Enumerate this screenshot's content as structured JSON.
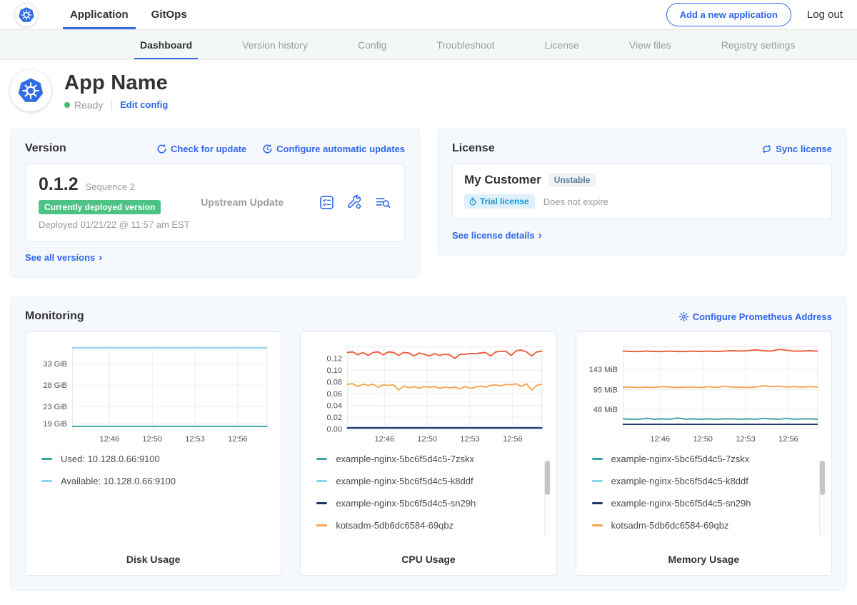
{
  "topbar": {
    "nav": [
      {
        "label": "Application"
      },
      {
        "label": "GitOps"
      }
    ],
    "add_app_button": "Add a new application",
    "logout": "Log out"
  },
  "subnav": {
    "tabs": [
      {
        "label": "Dashboard"
      },
      {
        "label": "Version history"
      },
      {
        "label": "Config"
      },
      {
        "label": "Troubleshoot"
      },
      {
        "label": "License"
      },
      {
        "label": "View files"
      },
      {
        "label": "Registry settings"
      }
    ]
  },
  "app_header": {
    "title": "App Name",
    "status": "Ready",
    "edit_config": "Edit config"
  },
  "version_card": {
    "title": "Version",
    "check_for_update": "Check for update",
    "configure_updates": "Configure automatic updates",
    "version": "0.1.2",
    "sequence": "Sequence 2",
    "deployed_badge": "Currently deployed version",
    "deployed_at": "Deployed 01/21/22 @ 11:57 am EST",
    "upstream": "Upstream Update",
    "see_all": "See all versions"
  },
  "license_card": {
    "title": "License",
    "sync": "Sync license",
    "customer": "My Customer",
    "channel": "Unstable",
    "trial_badge": "Trial license",
    "expiry": "Does not expire",
    "details": "See license details"
  },
  "monitoring": {
    "title": "Monitoring",
    "configure": "Configure Prometheus Address"
  },
  "colors": {
    "accent_blue": "#3066f0",
    "k8s_blue": "#326ce5",
    "success_green": "#4cc385",
    "status_ready": "#44bb66",
    "trial_blue": "#1897d4"
  },
  "chart_data": [
    {
      "type": "line",
      "title": "Disk Usage",
      "x_ticks": [
        "12:46",
        "12:50",
        "12:53",
        "12:56"
      ],
      "y_ticks": [
        {
          "label": "33 GiB",
          "value": 33
        },
        {
          "label": "28 GiB",
          "value": 28
        },
        {
          "label": "23 GiB",
          "value": 23
        },
        {
          "label": "19 GiB",
          "value": 19
        }
      ],
      "ylim": [
        17.8,
        36.9
      ],
      "legend_scrollbar": false,
      "legend": [
        {
          "label": "Used: 10.128.0.66:9100",
          "color": "#38a3a3"
        },
        {
          "label": "Available: 10.128.0.66:9100",
          "color": "#8cd2ec"
        }
      ],
      "series": [
        {
          "name": "Available: 10.128.0.66:9100",
          "color": "#8cd2ec",
          "values": [
            36.8,
            36.8
          ]
        },
        {
          "name": "Used: 10.128.0.66:9100",
          "color": "#38a3a3",
          "values": [
            18.4,
            18.4
          ]
        }
      ]
    },
    {
      "type": "line",
      "title": "CPU Usage",
      "x_ticks": [
        "12:46",
        "12:50",
        "12:53",
        "12:56"
      ],
      "y_ticks": [
        {
          "label": "0.12",
          "value": 0.12
        },
        {
          "label": "0.10",
          "value": 0.1
        },
        {
          "label": "0.08",
          "value": 0.08
        },
        {
          "label": "0.06",
          "value": 0.06
        },
        {
          "label": "0.04",
          "value": 0.04
        },
        {
          "label": "0.02",
          "value": 0.02
        },
        {
          "label": "0.00",
          "value": 0.0
        }
      ],
      "ylim": [
        0,
        0.1395
      ],
      "legend_scrollbar": true,
      "legend": [
        {
          "label": "example-nginx-5bc6f5d4c5-7zskx",
          "color": "#38a3a3"
        },
        {
          "label": "example-nginx-5bc6f5d4c5-k8ddf",
          "color": "#8cd2ec"
        },
        {
          "label": "example-nginx-5bc6f5d4c5-sn29h",
          "color": "#24356d"
        },
        {
          "label": "kotsadm-5db6dc6584-69qbz",
          "color": "#f9a452"
        }
      ],
      "series": [
        {
          "name": "kotsadm",
          "color": "#ee5f3f",
          "values": [
            0.13,
            0.131,
            0.126,
            0.13,
            0.125,
            0.13,
            0.131,
            0.126,
            0.131,
            0.13,
            0.125,
            0.13,
            0.129,
            0.124,
            0.129,
            0.127,
            0.124,
            0.128,
            0.125,
            0.127,
            0.126,
            0.12,
            0.127,
            0.127,
            0.128,
            0.128,
            0.129,
            0.13,
            0.124,
            0.131,
            0.132,
            0.132,
            0.125,
            0.133,
            0.134,
            0.131,
            0.124,
            0.131,
            0.132
          ]
        },
        {
          "name": "kotsadm-5db6dc6584-69qbz",
          "color": "#f9a452",
          "values": [
            0.076,
            0.077,
            0.072,
            0.076,
            0.074,
            0.076,
            0.071,
            0.075,
            0.074,
            0.075,
            0.066,
            0.073,
            0.07,
            0.072,
            0.069,
            0.072,
            0.071,
            0.072,
            0.069,
            0.071,
            0.07,
            0.071,
            0.068,
            0.072,
            0.069,
            0.071,
            0.073,
            0.071,
            0.074,
            0.075,
            0.073,
            0.076,
            0.075,
            0.077,
            0.072,
            0.077,
            0.066,
            0.074,
            0.076
          ]
        },
        {
          "name": "example-nginx-5bc6f5d4c5-k8ddf",
          "color": "#8cd2ec",
          "values": [
            0.0025,
            0.0025
          ]
        },
        {
          "name": "example-nginx-5bc6f5d4c5-7zskx",
          "color": "#38a3a3",
          "values": [
            0.0018,
            0.0018
          ]
        },
        {
          "name": "example-nginx-5bc6f5d4c5-sn29h",
          "color": "#24356d",
          "values": [
            0.0008,
            0.0008
          ]
        }
      ]
    },
    {
      "type": "line",
      "title": "Memory Usage",
      "x_ticks": [
        "12:46",
        "12:50",
        "12:53",
        "12:56"
      ],
      "y_ticks": [
        {
          "label": "143 MiB",
          "value": 143
        },
        {
          "label": "95 MiB",
          "value": 95
        },
        {
          "label": "48 MiB",
          "value": 48
        }
      ],
      "ylim": [
        2,
        196
      ],
      "legend_scrollbar": true,
      "legend": [
        {
          "label": "example-nginx-5bc6f5d4c5-7zskx",
          "color": "#38a3a3"
        },
        {
          "label": "example-nginx-5bc6f5d4c5-k8ddf",
          "color": "#8cd2ec"
        },
        {
          "label": "example-nginx-5bc6f5d4c5-sn29h",
          "color": "#24356d"
        },
        {
          "label": "kotsadm-5db6dc6584-69qbz",
          "color": "#f9a452"
        }
      ],
      "series": [
        {
          "name": "kotsadm",
          "color": "#ee5f3f",
          "values": [
            186,
            185,
            185,
            186,
            185,
            185,
            186,
            185,
            185,
            186,
            185,
            186,
            185,
            186,
            187,
            186,
            187,
            189,
            187,
            186,
            190,
            188,
            186,
            186,
            187,
            186
          ]
        },
        {
          "name": "kotsadm-5db6dc6584-69qbz",
          "color": "#f9a452",
          "values": [
            101,
            101,
            100,
            101,
            100,
            102,
            101,
            100,
            101,
            101,
            100,
            102,
            100,
            103,
            101,
            101,
            100,
            101,
            104,
            102,
            103,
            101,
            102,
            101,
            102,
            101
          ]
        },
        {
          "name": "example-nginx-5bc6f5d4c5-7zskx",
          "color": "#38a3a3",
          "values": [
            26,
            25,
            25,
            27,
            25,
            26,
            25,
            28,
            25,
            26,
            25,
            26,
            25,
            26,
            26,
            25,
            26,
            25,
            27,
            26,
            25,
            27,
            25,
            26,
            26,
            25
          ]
        },
        {
          "name": "example-nginx-5bc6f5d4c5-sn29h",
          "color": "#24356d",
          "values": [
            13,
            13
          ]
        }
      ]
    }
  ]
}
